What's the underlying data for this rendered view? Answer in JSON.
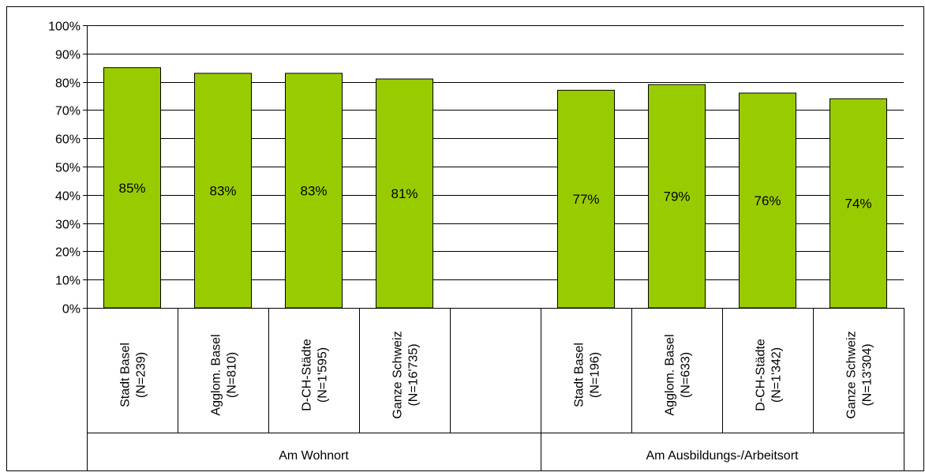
{
  "chart_data": {
    "type": "bar",
    "categories": [
      {
        "line1": "Stadt Basel",
        "line2": "(N=239)"
      },
      {
        "line1": "Agglom. Basel",
        "line2": "(N=810)"
      },
      {
        "line1": "D-CH-Städte",
        "line2": "(N=1'595)"
      },
      {
        "line1": "Ganze Schweiz",
        "line2": "(N=16'735)"
      },
      {
        "line1": "",
        "line2": ""
      },
      {
        "line1": "Stadt Basel",
        "line2": "(N=196)"
      },
      {
        "line1": "Agglom. Basel",
        "line2": "(N=633)"
      },
      {
        "line1": "D-CH-Städte",
        "line2": "(N=1'342)"
      },
      {
        "line1": "Ganze Schweiz",
        "line2": "(N=13'304)"
      }
    ],
    "values": [
      85,
      83,
      83,
      81,
      null,
      77,
      79,
      76,
      74
    ],
    "data_labels": [
      "85%",
      "83%",
      "83%",
      "81%",
      "",
      "77%",
      "79%",
      "76%",
      "74%"
    ],
    "groups": [
      {
        "label": "Am Wohnort",
        "count": 5
      },
      {
        "label": "Am Ausbildungs-/Arbeitsort",
        "count": 4
      }
    ],
    "y_ticks": [
      "0%",
      "10%",
      "20%",
      "30%",
      "40%",
      "50%",
      "60%",
      "70%",
      "80%",
      "90%",
      "100%"
    ],
    "ylim": [
      0,
      100
    ],
    "grid": true,
    "bar_color": "#99cc00",
    "title": "",
    "xlabel": "",
    "ylabel": ""
  }
}
